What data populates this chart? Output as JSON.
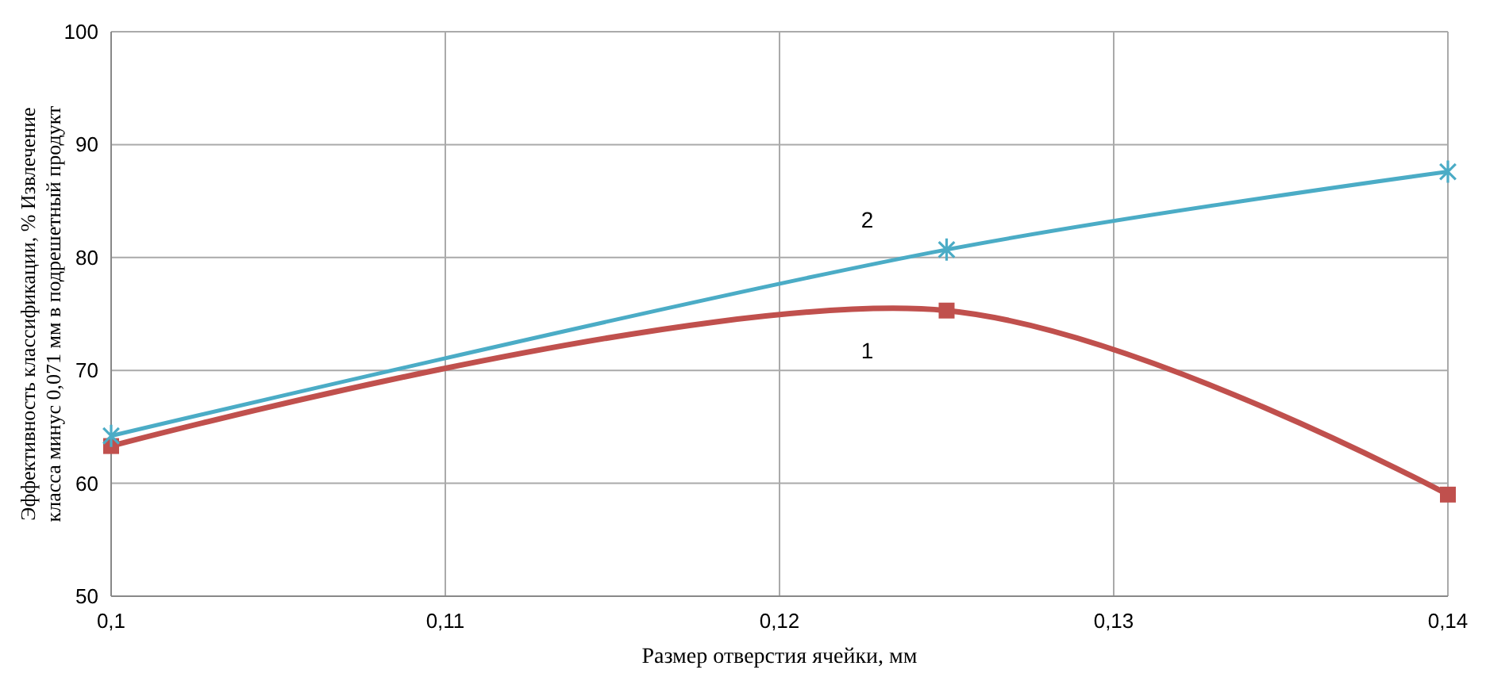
{
  "chart_data": {
    "type": "line",
    "xlabel": "Размер отверстия ячейки, мм",
    "ylabel": "Эффективность классификации, % Извлечение\nкласса минус 0,071 мм в подрешетный продукт",
    "x": [
      0.1,
      0.125,
      0.14
    ],
    "series": [
      {
        "name": "1",
        "color": "#c0504d",
        "values": [
          63.3,
          75.3,
          59.0
        ],
        "marker": "square"
      },
      {
        "name": "2",
        "color": "#4bacc6",
        "values": [
          64.2,
          80.7,
          87.6
        ],
        "marker": "cross"
      }
    ],
    "xlim": [
      0.1,
      0.14
    ],
    "xticks": [
      {
        "value": 0.1,
        "label": "0,1"
      },
      {
        "value": 0.11,
        "label": "0,11"
      },
      {
        "value": 0.12,
        "label": "0,12"
      },
      {
        "value": 0.13,
        "label": "0,13"
      },
      {
        "value": 0.14,
        "label": "0,14"
      }
    ],
    "ylim": [
      50,
      100
    ],
    "yticks": [
      50,
      60,
      70,
      80,
      90,
      100
    ],
    "grid": true
  }
}
